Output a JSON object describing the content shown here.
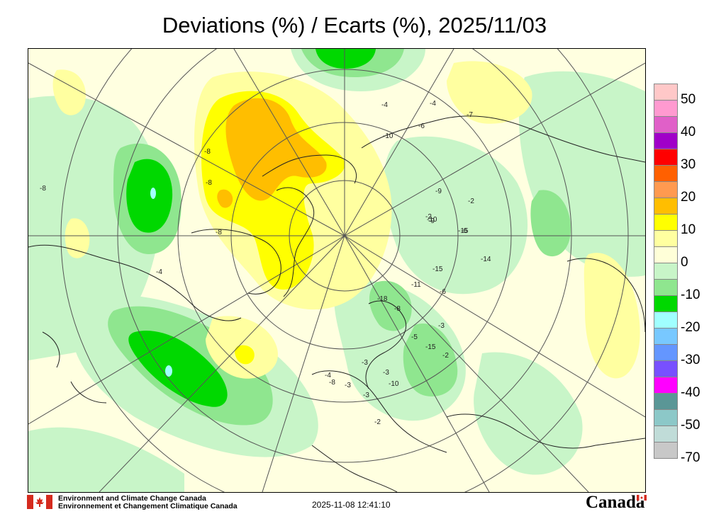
{
  "title": "Deviations (%) / Ecarts (%), 2025/11/03",
  "legend": {
    "labels": [
      "50",
      "40",
      "30",
      "20",
      "10",
      "0",
      "-10",
      "-20",
      "-30",
      "-40",
      "-50",
      "-70"
    ],
    "colors": [
      "#ffc8c8",
      "#ff9ad0",
      "#e060c8",
      "#a000c8",
      "#ff0000",
      "#ff6000",
      "#ff9a50",
      "#ffbe00",
      "#ffff00",
      "#ffffa0",
      "#ffffd8",
      "#c8f5c8",
      "#8fe68f",
      "#00d800",
      "#a0ffff",
      "#78c8ff",
      "#6496ff",
      "#7850ff",
      "#ff00ff",
      "#5a9696",
      "#8cc8c8",
      "#c0dcd8",
      "#c8c8c8"
    ]
  },
  "map_labels": [
    "-8",
    "-8",
    "-8",
    "-8",
    "-4",
    "-4",
    "-4",
    "-7",
    "-6",
    "-10",
    "-9",
    "-10",
    "-2",
    "-2",
    "-9",
    "-6",
    "-15",
    "-14",
    "-15",
    "-11",
    "-18",
    "-8",
    "-3",
    "-6",
    "-5",
    "-15",
    "-2",
    "-3",
    "-10",
    "-3",
    "-3",
    "-3",
    "-2",
    "-4",
    "-8"
  ],
  "footer": {
    "org_en": "Environment and Climate Change Canada",
    "org_fr": "Environnement et Changement Climatique Canada",
    "timestamp": "2025-11-08 12:41:10",
    "wordmark": "Canada"
  }
}
